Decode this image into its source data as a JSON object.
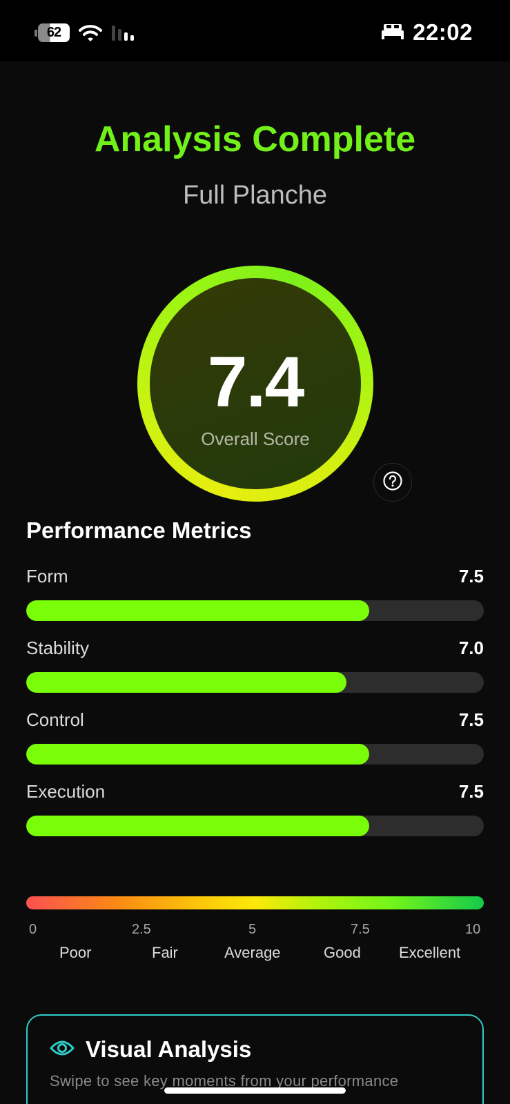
{
  "status_bar": {
    "battery_level": "62",
    "time": "22:02",
    "icons": [
      "battery-icon",
      "wifi-icon",
      "cellular-signal-icon",
      "bed-sleep-mode-icon"
    ]
  },
  "header": {
    "title": "Analysis Complete",
    "subtitle": "Full Planche",
    "title_color": "#72f01a"
  },
  "score": {
    "value": "7.4",
    "label": "Overall Score",
    "help_icon": "question-circle-icon"
  },
  "metrics": {
    "title": "Performance Metrics",
    "items": [
      {
        "label": "Form",
        "value": "7.5",
        "percent": 75
      },
      {
        "label": "Stability",
        "value": "7.0",
        "percent": 70
      },
      {
        "label": "Control",
        "value": "7.5",
        "percent": 75
      },
      {
        "label": "Execution",
        "value": "7.5",
        "percent": 75
      }
    ],
    "bar_color": "#7afd08",
    "track_color": "#2d2d2d"
  },
  "scale": {
    "ticks": [
      "0",
      "2.5",
      "5",
      "7.5",
      "10"
    ],
    "categories": [
      "Poor",
      "Fair",
      "Average",
      "Good",
      "Excellent"
    ],
    "gradient": [
      "#fb5151",
      "#fb8a14",
      "#fbe90a",
      "#72f51a",
      "#16c94b"
    ]
  },
  "visual_analysis": {
    "icon": "eye-icon",
    "title": "Visual Analysis",
    "subtitle": "Swipe to see key moments from your performance",
    "border_color": "#2fcdc9"
  }
}
